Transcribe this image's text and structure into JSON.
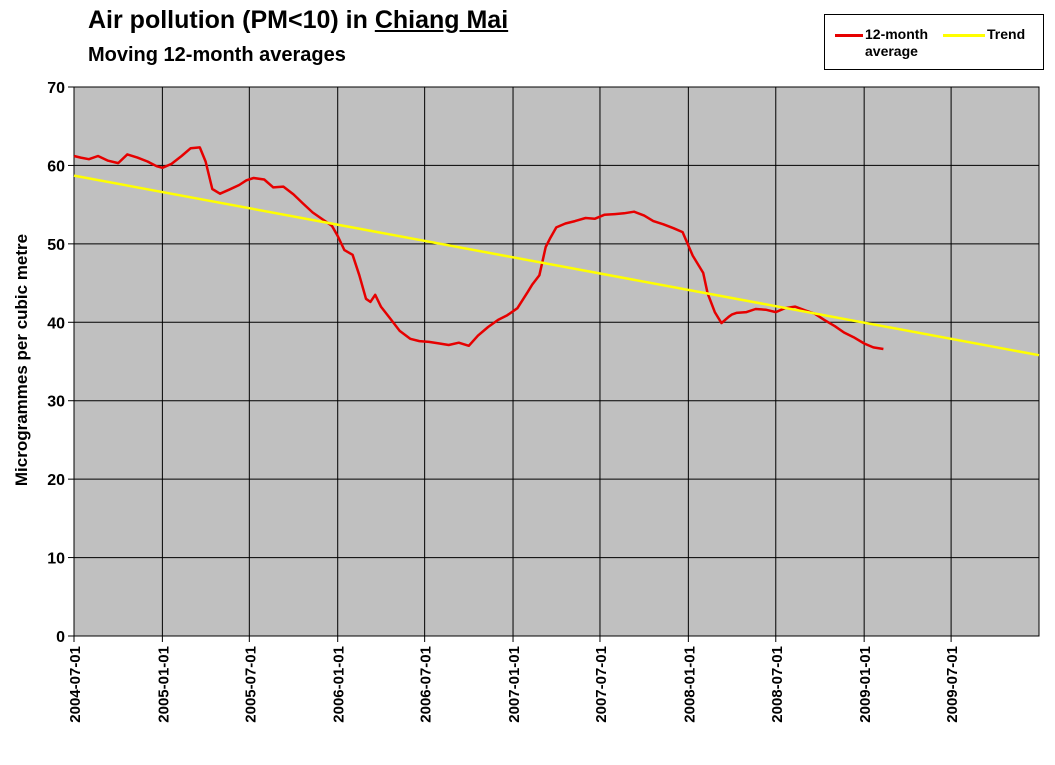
{
  "chart_data": {
    "type": "line",
    "title_prefix": "Air pollution (PM<10) in",
    "title_city": "Chiang Mai",
    "subtitle": "Moving 12-month averages",
    "ylabel": "Microgrammes per cubic metre",
    "xlabel": "",
    "ylim": [
      0,
      70
    ],
    "yticks": [
      0,
      10,
      20,
      30,
      40,
      50,
      60,
      70
    ],
    "xlim": [
      "2004-07-01",
      "2009-12-31"
    ],
    "xticks": [
      "2004-07-01",
      "2005-01-01",
      "2005-07-01",
      "2006-01-01",
      "2006-07-01",
      "2007-01-01",
      "2007-07-01",
      "2008-01-01",
      "2008-07-01",
      "2009-01-01",
      "2009-07-01"
    ],
    "grid": true,
    "legend_position": "top-right",
    "series": [
      {
        "name": "12-month average",
        "color": "#e60000",
        "x": [
          "2004-07-01",
          "2004-07-15",
          "2004-08-01",
          "2004-08-20",
          "2004-09-10",
          "2004-10-01",
          "2004-10-20",
          "2004-11-10",
          "2004-12-01",
          "2004-12-20",
          "2005-01-01",
          "2005-01-20",
          "2005-02-10",
          "2005-03-01",
          "2005-03-20",
          "2005-04-01",
          "2005-04-15",
          "2005-05-01",
          "2005-05-20",
          "2005-06-10",
          "2005-06-25",
          "2005-07-10",
          "2005-08-01",
          "2005-08-20",
          "2005-09-10",
          "2005-10-01",
          "2005-10-20",
          "2005-11-10",
          "2005-12-01",
          "2005-12-20",
          "2006-01-01",
          "2006-01-15",
          "2006-02-01",
          "2006-02-15",
          "2006-03-01",
          "2006-03-10",
          "2006-03-20",
          "2006-04-01",
          "2006-04-20",
          "2006-05-10",
          "2006-06-01",
          "2006-06-20",
          "2006-07-10",
          "2006-08-01",
          "2006-08-20",
          "2006-09-10",
          "2006-10-01",
          "2006-10-20",
          "2006-11-10",
          "2006-12-01",
          "2006-12-20",
          "2007-01-10",
          "2007-02-01",
          "2007-02-10",
          "2007-02-25",
          "2007-03-10",
          "2007-03-20",
          "2007-04-01",
          "2007-04-20",
          "2007-05-10",
          "2007-06-01",
          "2007-06-20",
          "2007-07-10",
          "2007-08-01",
          "2007-08-20",
          "2007-09-10",
          "2007-10-01",
          "2007-10-20",
          "2007-11-10",
          "2007-12-01",
          "2007-12-20",
          "2008-01-10",
          "2008-02-01",
          "2008-02-10",
          "2008-02-25",
          "2008-03-10",
          "2008-03-25",
          "2008-04-01",
          "2008-04-10",
          "2008-05-01",
          "2008-05-20",
          "2008-06-10",
          "2008-07-01",
          "2008-07-20",
          "2008-08-10",
          "2008-09-01",
          "2008-09-20",
          "2008-10-10",
          "2008-11-01",
          "2008-11-20",
          "2008-12-10",
          "2009-01-01",
          "2009-01-20",
          "2009-02-10"
        ],
        "y": [
          61.2,
          61.0,
          60.8,
          61.2,
          60.6,
          60.3,
          61.4,
          61.0,
          60.5,
          59.9,
          59.7,
          60.2,
          61.2,
          62.2,
          62.3,
          60.5,
          57.0,
          56.4,
          56.9,
          57.5,
          58.1,
          58.4,
          58.2,
          57.2,
          57.3,
          56.3,
          55.2,
          54.0,
          53.1,
          52.3,
          51.0,
          49.2,
          48.6,
          46.0,
          43.0,
          42.6,
          43.5,
          42.0,
          40.5,
          38.9,
          37.9,
          37.6,
          37.5,
          37.3,
          37.1,
          37.4,
          37.0,
          38.3,
          39.4,
          40.3,
          40.9,
          41.8,
          43.9,
          44.8,
          46.0,
          49.6,
          50.8,
          52.1,
          52.6,
          52.9,
          53.3,
          53.2,
          53.7,
          53.8,
          53.9,
          54.1,
          53.6,
          52.9,
          52.5,
          52.0,
          51.5,
          48.5,
          46.3,
          43.7,
          41.3,
          39.9,
          40.7,
          41.0,
          41.2,
          41.3,
          41.7,
          41.6,
          41.3,
          41.8,
          42.0,
          41.5,
          41.1,
          40.3,
          39.5,
          38.7,
          38.1,
          37.3,
          36.8,
          36.6
        ]
      },
      {
        "name": "Trend",
        "color": "#ffff00",
        "x": [
          "2004-07-01",
          "2009-12-31"
        ],
        "y": [
          58.7,
          35.8
        ]
      }
    ]
  }
}
